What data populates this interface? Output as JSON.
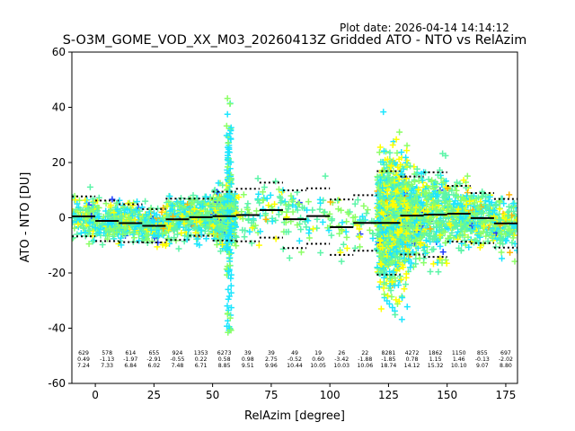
{
  "plot_date": "Plot date: 2026-04-14 14:14:12",
  "chart_data": {
    "type": "scatter",
    "title": "S-O3M_GOME_VOD_XX_M03_20260413Z Gridded ATO - NTO vs RelAzim",
    "xlabel": "RelAzim [degree]",
    "ylabel": "ATO - NTO [DU]",
    "xlim": [
      -10,
      180
    ],
    "ylim": [
      -60,
      60
    ],
    "xticks": [
      0,
      25,
      50,
      75,
      100,
      125,
      150,
      175
    ],
    "yticks": [
      -60,
      -40,
      -20,
      0,
      20,
      40,
      60
    ],
    "marker": "+",
    "colors": {
      "cloud": "#5cf5a8",
      "cyan": "#1ee6ff",
      "yellow": "#ffff00",
      "lime": "#8cff66",
      "blue": "#1e3cff",
      "orange": "#ffb400"
    },
    "bins": [
      {
        "x": -5,
        "count": "629",
        "mean": "0.49",
        "std": "7.24"
      },
      {
        "x": 5,
        "count": "578",
        "mean": "-1.13",
        "std": "7.33"
      },
      {
        "x": 15,
        "count": "614",
        "mean": "-1.97",
        "std": "6.84"
      },
      {
        "x": 25,
        "count": "655",
        "mean": "-2.91",
        "std": "6.02"
      },
      {
        "x": 35,
        "count": "924",
        "mean": "-0.55",
        "std": "7.48"
      },
      {
        "x": 45,
        "count": "1353",
        "mean": "0.22",
        "std": "6.71"
      },
      {
        "x": 55,
        "count": "6273",
        "mean": "0.58",
        "std": "8.85"
      },
      {
        "x": 65,
        "count": "39",
        "mean": "0.98",
        "std": "9.51"
      },
      {
        "x": 75,
        "count": "39",
        "mean": "2.75",
        "std": "9.96"
      },
      {
        "x": 85,
        "count": "49",
        "mean": "-0.52",
        "std": "10.44"
      },
      {
        "x": 95,
        "count": "19",
        "mean": "0.60",
        "std": "10.05"
      },
      {
        "x": 105,
        "count": "26",
        "mean": "-3.42",
        "std": "10.03"
      },
      {
        "x": 115,
        "count": "22",
        "mean": "-1.88",
        "std": "10.06"
      },
      {
        "x": 125,
        "count": "8281",
        "mean": "-1.85",
        "std": "18.74"
      },
      {
        "x": 135,
        "count": "4272",
        "mean": "0.78",
        "std": "14.12"
      },
      {
        "x": 145,
        "count": "1862",
        "mean": "1.15",
        "std": "15.32"
      },
      {
        "x": 155,
        "count": "1150",
        "mean": "1.46",
        "std": "10.10"
      },
      {
        "x": 165,
        "count": "855",
        "mean": "-0.13",
        "std": "9.07"
      },
      {
        "x": 175,
        "count": "697",
        "mean": "-2.02",
        "std": "8.80"
      }
    ]
  }
}
